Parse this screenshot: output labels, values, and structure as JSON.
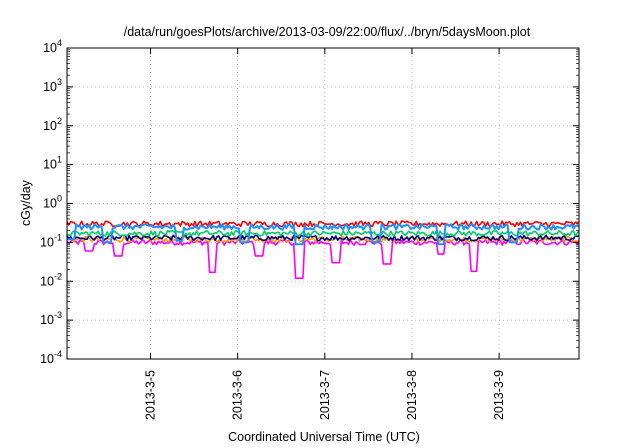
{
  "chart_data": {
    "type": "line",
    "title": "/data/run/goesPlots/archive/2013-03-09/22:00/flux/../bryn/5daysMoon.plot",
    "xlabel": "Coordinated Universal Time (UTC)",
    "ylabel": "cGy/day",
    "yscale": "log",
    "ylim": [
      0.0001,
      10000
    ],
    "yticks": [
      {
        "base": "10",
        "exp": "4"
      },
      {
        "base": "10",
        "exp": "3"
      },
      {
        "base": "10",
        "exp": "2"
      },
      {
        "base": "10",
        "exp": "1"
      },
      {
        "base": "10",
        "exp": "0"
      },
      {
        "base": "10",
        "exp": "-1"
      },
      {
        "base": "10",
        "exp": "-2"
      },
      {
        "base": "10",
        "exp": "-3"
      },
      {
        "base": "10",
        "exp": "-4"
      }
    ],
    "xlim": [
      "2013-03-04 01:00",
      "2013-03-09 22:00"
    ],
    "xticks": [
      "2013-3-5",
      "2013-3-6",
      "2013-3-7",
      "2013-3-8",
      "2013-3-9"
    ],
    "grid": true,
    "series": [
      {
        "color": "#ff00ff",
        "baseline": 0.1,
        "spikes": [
          {
            "x": "2013-03-04 07:00",
            "y": 0.06
          },
          {
            "x": "2013-03-04 15:00",
            "y": 0.045
          },
          {
            "x": "2013-03-05 17:00",
            "y": 0.017
          },
          {
            "x": "2013-03-06 06:00",
            "y": 0.045
          },
          {
            "x": "2013-03-06 17:00",
            "y": 0.012
          },
          {
            "x": "2013-03-07 03:00",
            "y": 0.03
          },
          {
            "x": "2013-03-07 17:00",
            "y": 0.028
          },
          {
            "x": "2013-03-08 08:00",
            "y": 0.05
          },
          {
            "x": "2013-03-08 17:00",
            "y": 0.018
          }
        ]
      },
      {
        "color": "#ff9900",
        "baseline": 0.12,
        "spikes": []
      },
      {
        "color": "#000080",
        "baseline": 0.13,
        "spikes": []
      },
      {
        "color": "#00cc66",
        "baseline": 0.17,
        "spikes": []
      },
      {
        "color": "#ff0000",
        "baseline": 0.3,
        "spikes": []
      },
      {
        "color": "#1e90ff",
        "baseline": 0.25,
        "spikes": [
          {
            "x": "2013-03-04 02:00",
            "y": 0.12
          },
          {
            "x": "2013-03-04 12:00",
            "y": 0.1
          },
          {
            "x": "2013-03-05 08:00",
            "y": 0.11
          },
          {
            "x": "2013-03-06 02:00",
            "y": 0.1
          },
          {
            "x": "2013-03-06 17:00",
            "y": 0.09
          },
          {
            "x": "2013-03-07 14:00",
            "y": 0.1
          },
          {
            "x": "2013-03-08 08:00",
            "y": 0.09
          },
          {
            "x": "2013-03-09 04:00",
            "y": 0.1
          }
        ]
      }
    ]
  }
}
